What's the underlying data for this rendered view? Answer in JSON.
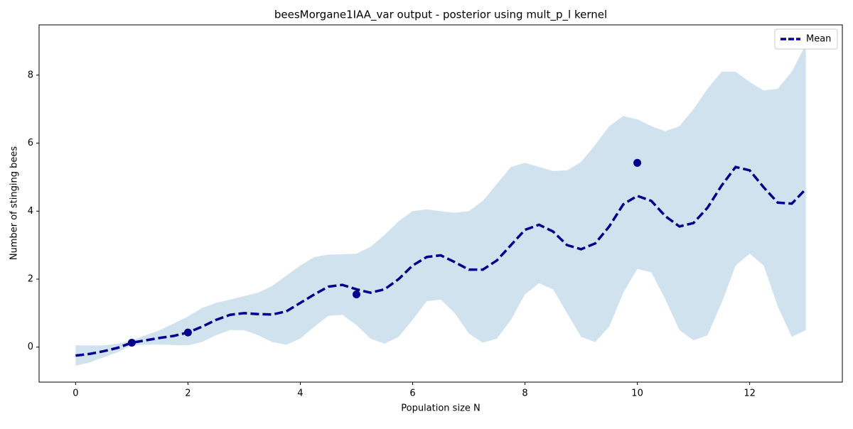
{
  "chart_data": {
    "type": "line",
    "title": "beesMorgane1IAA_var output - posterior using mult_p_l kernel",
    "xlabel": "Population size N",
    "ylabel": "Number of stinging bees",
    "x": [
      0,
      0.25,
      0.5,
      0.75,
      1,
      1.25,
      1.5,
      1.75,
      2,
      2.25,
      2.5,
      2.75,
      3,
      3.25,
      3.5,
      3.75,
      4,
      4.25,
      4.5,
      4.75,
      5,
      5.25,
      5.5,
      5.75,
      6,
      6.25,
      6.5,
      6.75,
      7,
      7.25,
      7.5,
      7.75,
      8,
      8.25,
      8.5,
      8.75,
      9,
      9.25,
      9.5,
      9.75,
      10,
      10.25,
      10.5,
      10.75,
      11,
      11.25,
      11.5,
      11.75,
      12,
      12.25,
      12.5,
      12.75,
      13
    ],
    "series": [
      {
        "name": "Mean",
        "color": "#00008b",
        "values": [
          -0.25,
          -0.2,
          -0.12,
          -0.02,
          0.13,
          0.2,
          0.27,
          0.33,
          0.43,
          0.6,
          0.8,
          0.95,
          1.0,
          0.97,
          0.96,
          1.05,
          1.3,
          1.55,
          1.78,
          1.83,
          1.7,
          1.6,
          1.7,
          2.0,
          2.4,
          2.65,
          2.7,
          2.5,
          2.28,
          2.28,
          2.55,
          3.0,
          3.45,
          3.6,
          3.4,
          3.0,
          2.88,
          3.05,
          3.55,
          4.2,
          4.45,
          4.3,
          3.85,
          3.55,
          3.65,
          4.1,
          4.75,
          5.3,
          5.2,
          4.7,
          4.25,
          4.22,
          4.65
        ]
      }
    ],
    "band": {
      "color": "#d1e2ef",
      "upper": [
        0.05,
        0.05,
        0.05,
        0.1,
        0.2,
        0.35,
        0.5,
        0.7,
        0.9,
        1.15,
        1.3,
        1.4,
        1.5,
        1.6,
        1.8,
        2.1,
        2.4,
        2.65,
        2.72,
        2.73,
        2.75,
        2.95,
        3.3,
        3.7,
        4.0,
        4.05,
        4.0,
        3.95,
        4.0,
        4.3,
        4.8,
        5.3,
        5.42,
        5.3,
        5.18,
        5.2,
        5.45,
        5.95,
        6.5,
        6.8,
        6.7,
        6.5,
        6.35,
        6.5,
        7.0,
        7.6,
        8.1,
        8.1,
        7.8,
        7.55,
        7.6,
        8.1,
        8.9
      ],
      "lower": [
        -0.55,
        -0.45,
        -0.3,
        -0.15,
        0.05,
        0.07,
        0.08,
        0.06,
        0.05,
        0.15,
        0.35,
        0.5,
        0.5,
        0.35,
        0.15,
        0.07,
        0.25,
        0.6,
        0.92,
        0.95,
        0.65,
        0.25,
        0.1,
        0.3,
        0.8,
        1.35,
        1.4,
        1.0,
        0.4,
        0.13,
        0.25,
        0.8,
        1.55,
        1.88,
        1.7,
        1.0,
        0.3,
        0.15,
        0.6,
        1.6,
        2.3,
        2.2,
        1.4,
        0.5,
        0.2,
        0.35,
        1.3,
        2.4,
        2.75,
        2.4,
        1.2,
        0.3,
        0.5
      ]
    },
    "points": {
      "color": "#00008b",
      "x": [
        1,
        2,
        5,
        10
      ],
      "y": [
        0.13,
        0.43,
        1.55,
        5.42
      ]
    },
    "xlim": [
      -0.65,
      13.65
    ],
    "ylim": [
      -1.03,
      9.48
    ],
    "xticks": [
      0,
      2,
      4,
      6,
      8,
      10,
      12
    ],
    "yticks": [
      0,
      2,
      4,
      6,
      8
    ],
    "legend": "upper right"
  }
}
